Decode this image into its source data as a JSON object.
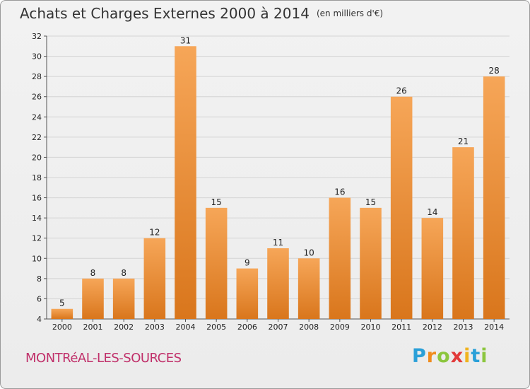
{
  "title": "Achats et Charges Externes 2000 à 2014",
  "unit": "(en milliers d'€)",
  "city": "MONTRéAL-LES-SOURCES",
  "brand": {
    "letters": [
      "P",
      "r",
      "o",
      "x",
      "i",
      "t",
      "i"
    ],
    "colors": [
      "#2aa0d8",
      "#f08c1e",
      "#8cc63e",
      "#e23a3a",
      "#f0b31e",
      "#2aa0d8",
      "#8cc63e"
    ]
  },
  "colors": {
    "bar_top": "#f6a658",
    "bar_bottom": "#d9761c",
    "grid": "#d4d4d4",
    "text": "#333333",
    "city": "#c0306a"
  },
  "chart_data": {
    "type": "bar",
    "categories": [
      "2000",
      "2001",
      "2002",
      "2003",
      "2004",
      "2005",
      "2006",
      "2007",
      "2008",
      "2009",
      "2010",
      "2011",
      "2012",
      "2013",
      "2014"
    ],
    "values": [
      5,
      8,
      8,
      12,
      31,
      15,
      9,
      11,
      10,
      16,
      15,
      26,
      14,
      21,
      28
    ],
    "ylim": [
      4,
      32
    ],
    "yticks": [
      4,
      6,
      8,
      10,
      12,
      14,
      16,
      18,
      20,
      22,
      24,
      26,
      28,
      30,
      32
    ],
    "grid": "horizontal",
    "legend": "none"
  }
}
